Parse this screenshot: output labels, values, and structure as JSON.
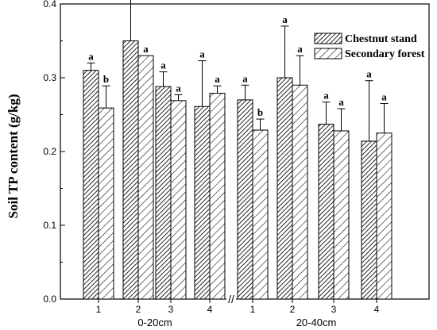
{
  "chart_data": {
    "type": "bar",
    "ylabel": "Soil TP content (g/kg)",
    "ylim": [
      0.0,
      0.4
    ],
    "yticks": [
      "0.0",
      "0.1",
      "0.2",
      "0.3",
      "0.4"
    ],
    "groups": [
      {
        "label": "0-20cm",
        "categories": [
          "1",
          "2",
          "3",
          "4"
        ]
      },
      {
        "label": "20-40cm",
        "categories": [
          "1",
          "2",
          "3",
          "4"
        ]
      }
    ],
    "axis_break_label": "//",
    "legend_position": "top-right",
    "series": [
      {
        "name": "Chestnut stand",
        "pattern": "dense-diagonal-hatch",
        "values": [
          0.31,
          0.35,
          0.288,
          0.261,
          0.27,
          0.3,
          0.237,
          0.214
        ],
        "errors": [
          0.01,
          0.062,
          0.02,
          0.062,
          0.02,
          0.07,
          0.03,
          0.082
        ],
        "letters": [
          "a",
          "a",
          "a",
          "a",
          "a",
          "a",
          "a",
          "a"
        ]
      },
      {
        "name": "Secondary forest",
        "pattern": "sparse-diagonal-hatch",
        "values": [
          0.259,
          0.33,
          0.269,
          0.279,
          0.229,
          0.29,
          0.228,
          0.225
        ],
        "errors": [
          0.03,
          0.0,
          0.008,
          0.01,
          0.015,
          0.04,
          0.03,
          0.04
        ],
        "letters": [
          "b",
          "a",
          "a",
          "a",
          "b",
          "a",
          "a",
          "a"
        ]
      }
    ],
    "colors": {
      "axis": "#000000",
      "bar_fill": "#ffffff",
      "hatch": "#000000"
    }
  }
}
